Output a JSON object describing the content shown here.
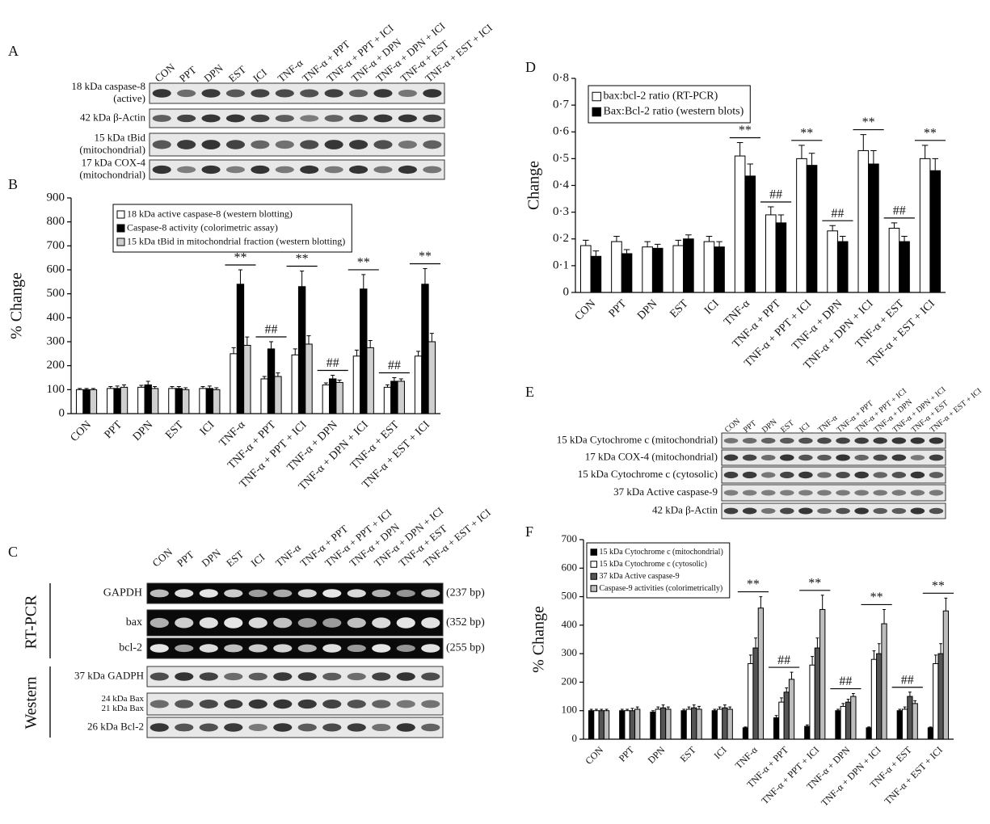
{
  "panel_labels": [
    "A",
    "B",
    "C",
    "D",
    "E",
    "F"
  ],
  "lanes": [
    "CON",
    "PPT",
    "DPN",
    "EST",
    "ICI",
    "TNF-α",
    "TNF-α + PPT",
    "TNF-α + PPT + ICI",
    "TNF-α + DPN",
    "TNF-α + DPN + ICI",
    "TNF-α + EST",
    "TNF-α + EST + ICI"
  ],
  "blot_A": {
    "rows": [
      [
        "18 kDa caspase-8",
        "(active)"
      ],
      [
        "42 kDa β-Actin"
      ],
      [
        "15 kDa tBid",
        "(mitochondrial)"
      ],
      [
        "17 kDa COX-4",
        "(mitochondrial)"
      ]
    ]
  },
  "blot_C": {
    "rt_pcr_label": "RT-PCR",
    "rt_pcr_rows": [
      {
        "name": "GAPDH",
        "size": "(237 bp)"
      },
      {
        "name": "bax",
        "size": "(352 bp)"
      },
      {
        "name": "bcl-2",
        "size": "(255 bp)"
      }
    ],
    "western_label": "Western",
    "western_rows": [
      [
        "37 kDa GADPH"
      ],
      [
        "24 kDa Bax",
        "21 kDa Bax"
      ],
      [
        "26 kDa Bcl-2"
      ]
    ]
  },
  "blot_E": {
    "rows": [
      "15 kDa Cytochrome c (mitochondrial)",
      "17 kDa COX-4 (mitochondrial)",
      "15 kDa Cytochrome c (cytosolic)",
      "37 kDa Active caspase-9",
      "42 kDa β-Actin"
    ]
  },
  "chart_data": [
    {
      "type": "bar",
      "ylabel": "% Change",
      "categories": [
        "CON",
        "PPT",
        "DPN",
        "EST",
        "ICI",
        "TNF-α",
        "TNF-α + PPT",
        "TNF-α + PPT + ICI",
        "TNF-α + DPN",
        "TNF-α + DPN + ICI",
        "TNF-α + EST",
        "TNF-α + EST + ICI"
      ],
      "series": [
        {
          "name": "18 kDa active caspase-8 (western blotting)",
          "color": "#ffffff",
          "values": [
            100,
            105,
            110,
            105,
            105,
            250,
            145,
            245,
            120,
            240,
            110,
            240
          ],
          "errors": [
            5,
            8,
            8,
            8,
            8,
            25,
            10,
            25,
            8,
            25,
            10,
            20
          ]
        },
        {
          "name": "Caspase-8 activity (colorimetric assay)",
          "color": "#000000",
          "values": [
            100,
            105,
            120,
            105,
            105,
            540,
            270,
            530,
            145,
            520,
            135,
            540
          ],
          "errors": [
            5,
            10,
            15,
            8,
            10,
            60,
            30,
            65,
            15,
            60,
            15,
            65
          ]
        },
        {
          "name": "15 kDa tBid in mitochondrial fraction (western blotting)",
          "color": "#cfcfcf",
          "values": [
            100,
            110,
            105,
            100,
            100,
            285,
            155,
            290,
            130,
            275,
            135,
            300
          ],
          "errors": [
            5,
            10,
            8,
            8,
            8,
            35,
            15,
            35,
            10,
            30,
            10,
            35
          ]
        }
      ],
      "annotations": [
        null,
        null,
        null,
        null,
        null,
        "**",
        "##",
        "**",
        "##",
        "**",
        "##",
        "**"
      ],
      "ylim": [
        0,
        900
      ],
      "yticks": [
        0,
        100,
        200,
        300,
        400,
        500,
        600,
        700,
        800,
        900
      ],
      "legend": "top-left"
    },
    {
      "type": "bar",
      "ylabel": "Change",
      "categories": [
        "CON",
        "PPT",
        "DPN",
        "EST",
        "ICI",
        "TNF-α",
        "TNF-α + PPT",
        "TNF-α + PPT + ICI",
        "TNF-α + DPN",
        "TNF-α + DPN + ICI",
        "TNF-α + EST",
        "TNF-α + EST + ICI"
      ],
      "series": [
        {
          "name": "bax:bcl-2 ratio (RT-PCR)",
          "color": "#ffffff",
          "values": [
            0.175,
            0.19,
            0.17,
            0.175,
            0.19,
            0.51,
            0.29,
            0.5,
            0.23,
            0.53,
            0.24,
            0.5
          ],
          "errors": [
            0.02,
            0.02,
            0.02,
            0.02,
            0.02,
            0.05,
            0.03,
            0.05,
            0.02,
            0.06,
            0.02,
            0.05
          ]
        },
        {
          "name": "Bax:Bcl-2 ratio (western blots)",
          "color": "#000000",
          "values": [
            0.135,
            0.145,
            0.165,
            0.2,
            0.17,
            0.435,
            0.26,
            0.475,
            0.19,
            0.48,
            0.19,
            0.455
          ],
          "errors": [
            0.02,
            0.015,
            0.015,
            0.015,
            0.02,
            0.045,
            0.03,
            0.045,
            0.02,
            0.05,
            0.02,
            0.045
          ]
        }
      ],
      "annotations": [
        null,
        null,
        null,
        null,
        null,
        "**",
        "##",
        "**",
        "##",
        "**",
        "##",
        "**"
      ],
      "ylim": [
        0,
        0.8
      ],
      "yticks": [
        0,
        {
          "value": 0.1,
          "label": "0·1"
        },
        {
          "value": 0.2,
          "label": "0·2"
        },
        {
          "value": 0.3,
          "label": "0·3"
        },
        {
          "value": 0.4,
          "label": "0·4"
        },
        {
          "value": 0.5,
          "label": "0·5"
        },
        {
          "value": 0.6,
          "label": "0·6"
        },
        {
          "value": 0.7,
          "label": "0·7"
        },
        {
          "value": 0.8,
          "label": "0·8"
        }
      ],
      "legend": "top-left"
    },
    {
      "type": "bar",
      "ylabel": "% Change",
      "categories": [
        "CON",
        "PPT",
        "DPN",
        "EST",
        "ICI",
        "TNF-α",
        "TNF-α + PPT",
        "TNF-α + PPT + ICI",
        "TNF-α + DPN",
        "TNF-α + DPN + ICI",
        "TNF-α + EST",
        "TNF-α + EST + ICI"
      ],
      "series": [
        {
          "name": "15 kDa Cytochrome c (mitochondrial)",
          "color": "#000000",
          "values": [
            100,
            100,
            95,
            100,
            100,
            40,
            75,
            45,
            100,
            40,
            100,
            40
          ],
          "errors": [
            5,
            5,
            5,
            5,
            5,
            3,
            8,
            5,
            5,
            3,
            5,
            3
          ]
        },
        {
          "name": "15 kDa Cytochrome c (cytosolic)",
          "color": "#ffffff",
          "values": [
            100,
            100,
            105,
            105,
            105,
            265,
            130,
            260,
            115,
            280,
            105,
            265
          ],
          "errors": [
            5,
            5,
            8,
            8,
            8,
            30,
            15,
            30,
            10,
            30,
            8,
            30
          ]
        },
        {
          "name": "37 kDa Active caspase-9",
          "color": "#555555",
          "values": [
            100,
            100,
            110,
            110,
            110,
            320,
            165,
            320,
            130,
            300,
            150,
            300
          ],
          "errors": [
            5,
            8,
            10,
            10,
            10,
            35,
            15,
            35,
            10,
            35,
            15,
            35
          ]
        },
        {
          "name": "Caspase-9 activities (colorimetrically)",
          "color": "#bdbdbd",
          "values": [
            100,
            105,
            105,
            105,
            105,
            460,
            210,
            455,
            150,
            405,
            125,
            450
          ],
          "errors": [
            5,
            8,
            8,
            10,
            8,
            40,
            25,
            50,
            10,
            50,
            10,
            45
          ]
        }
      ],
      "annotations": [
        null,
        null,
        null,
        null,
        null,
        "**",
        "##",
        "**",
        "##",
        "**",
        "##",
        "**"
      ],
      "ylim": [
        0,
        700
      ],
      "yticks": [
        0,
        100,
        200,
        300,
        400,
        500,
        600,
        700
      ],
      "legend": "top-left"
    }
  ]
}
